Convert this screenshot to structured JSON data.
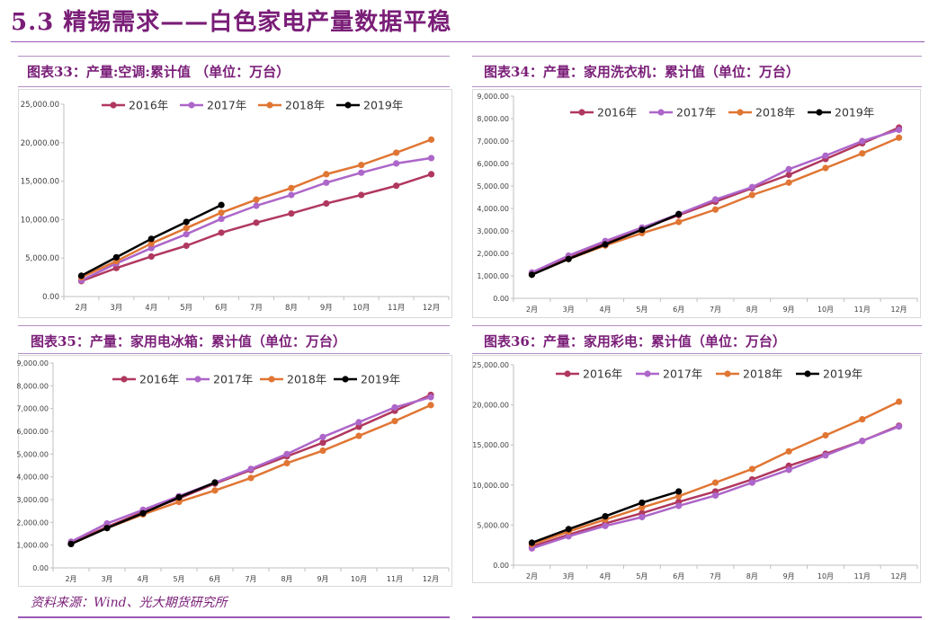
{
  "page": {
    "title": "5.3 精锡需求——白色家电产量数据平稳",
    "source": "资料来源：Wind、光大期货研究所"
  },
  "colors": {
    "2016": "#b0385f",
    "2017": "#ad66c9",
    "2018": "#e07634",
    "2019": "#000000",
    "accent": "#7a1e78"
  },
  "panels": [
    {
      "title": "图表33：产量:空调:累计值 （单位：万台）"
    },
    {
      "title": "图表34：产量：家用洗衣机：累计值（单位：万台）"
    },
    {
      "title": "图表35：产量：家用电冰箱：累计值（单位：万台）"
    },
    {
      "title": "图表36：产量：家用彩电：累计值（单位：万台）"
    }
  ],
  "chart_data": [
    {
      "type": "line",
      "categories": [
        "2月",
        "3月",
        "4月",
        "5月",
        "6月",
        "7月",
        "8月",
        "9月",
        "10月",
        "11月",
        "12月"
      ],
      "ylim": [
        0,
        25000
      ],
      "yticks": [
        "0.00",
        "5,000.00",
        "10,000.00",
        "15,000.00",
        "20,000.00",
        "25,000.00"
      ],
      "legend": "top",
      "series": [
        {
          "name": "2016年",
          "values": [
            2000,
            3700,
            5200,
            6600,
            8300,
            9600,
            10800,
            12100,
            13200,
            14400,
            15900
          ]
        },
        {
          "name": "2017年",
          "values": [
            2100,
            4300,
            6300,
            8100,
            10100,
            11800,
            13200,
            14800,
            16100,
            17300,
            18000
          ]
        },
        {
          "name": "2018年",
          "values": [
            2500,
            4600,
            6900,
            8900,
            10900,
            12600,
            14100,
            15900,
            17100,
            18700,
            20400
          ]
        },
        {
          "name": "2019年",
          "values": [
            2700,
            5100,
            7500,
            9700,
            11900,
            null,
            null,
            null,
            null,
            null,
            null
          ]
        }
      ]
    },
    {
      "type": "line",
      "categories": [
        "2月",
        "3月",
        "4月",
        "5月",
        "6月",
        "7月",
        "8月",
        "9月",
        "10月",
        "11月",
        "12月"
      ],
      "ylim": [
        0,
        9000
      ],
      "yticks": [
        "0.00",
        "1,000.00",
        "2,000.00",
        "3,000.00",
        "4,000.00",
        "5,000.00",
        "6,000.00",
        "7,000.00",
        "8,000.00",
        "9,000.00"
      ],
      "legend": "top",
      "series": [
        {
          "name": "2016年",
          "values": [
            1100,
            1800,
            2500,
            3100,
            3700,
            4300,
            4900,
            5500,
            6200,
            6900,
            7600
          ]
        },
        {
          "name": "2017年",
          "values": [
            1150,
            1900,
            2550,
            3150,
            3750,
            4400,
            4950,
            5750,
            6350,
            7000,
            7500
          ]
        },
        {
          "name": "2018年",
          "values": [
            1050,
            1750,
            2350,
            2900,
            3400,
            3950,
            4600,
            5150,
            5800,
            6450,
            7150
          ]
        },
        {
          "name": "2019年",
          "values": [
            1050,
            1750,
            2400,
            3050,
            3750,
            null,
            null,
            null,
            null,
            null,
            null
          ]
        }
      ]
    },
    {
      "type": "line",
      "categories": [
        "2月",
        "3月",
        "4月",
        "5月",
        "6月",
        "7月",
        "8月",
        "9月",
        "10月",
        "11月",
        "12月"
      ],
      "ylim": [
        0,
        9000
      ],
      "yticks": [
        "0.00",
        "1,000.00",
        "2,000.00",
        "3,000.00",
        "4,000.00",
        "5,000.00",
        "6,000.00",
        "7,000.00",
        "8,000.00",
        "9,000.00"
      ],
      "legend": "top",
      "series": [
        {
          "name": "2016年",
          "values": [
            1100,
            1800,
            2450,
            3050,
            3700,
            4300,
            4900,
            5500,
            6200,
            6900,
            7600
          ]
        },
        {
          "name": "2017年",
          "values": [
            1150,
            1950,
            2550,
            3150,
            3750,
            4350,
            5000,
            5750,
            6400,
            7050,
            7500
          ]
        },
        {
          "name": "2018年",
          "values": [
            1050,
            1750,
            2350,
            2900,
            3400,
            3950,
            4600,
            5150,
            5800,
            6450,
            7150
          ]
        },
        {
          "name": "2019年",
          "values": [
            1050,
            1750,
            2400,
            3100,
            3750,
            null,
            null,
            null,
            null,
            null,
            null
          ]
        }
      ]
    },
    {
      "type": "line",
      "categories": [
        "2月",
        "3月",
        "4月",
        "5月",
        "6月",
        "7月",
        "8月",
        "9月",
        "10月",
        "11月",
        "12月"
      ],
      "ylim": [
        0,
        25000
      ],
      "yticks": [
        "0.00",
        "5,000.00",
        "10,000.00",
        "15,000.00",
        "20,000.00",
        "25,000.00"
      ],
      "legend": "top",
      "series": [
        {
          "name": "2016年",
          "values": [
            2300,
            3800,
            5200,
            6500,
            7900,
            9200,
            10700,
            12400,
            13900,
            15500,
            17400
          ]
        },
        {
          "name": "2017年",
          "values": [
            2100,
            3600,
            4900,
            6000,
            7400,
            8700,
            10300,
            11900,
            13700,
            15500,
            17300
          ]
        },
        {
          "name": "2018年",
          "values": [
            2600,
            4200,
            5700,
            7200,
            8600,
            10300,
            12000,
            14200,
            16200,
            18200,
            20400
          ]
        },
        {
          "name": "2019年",
          "values": [
            2800,
            4500,
            6100,
            7800,
            9200,
            null,
            null,
            null,
            null,
            null,
            null
          ]
        }
      ]
    }
  ]
}
